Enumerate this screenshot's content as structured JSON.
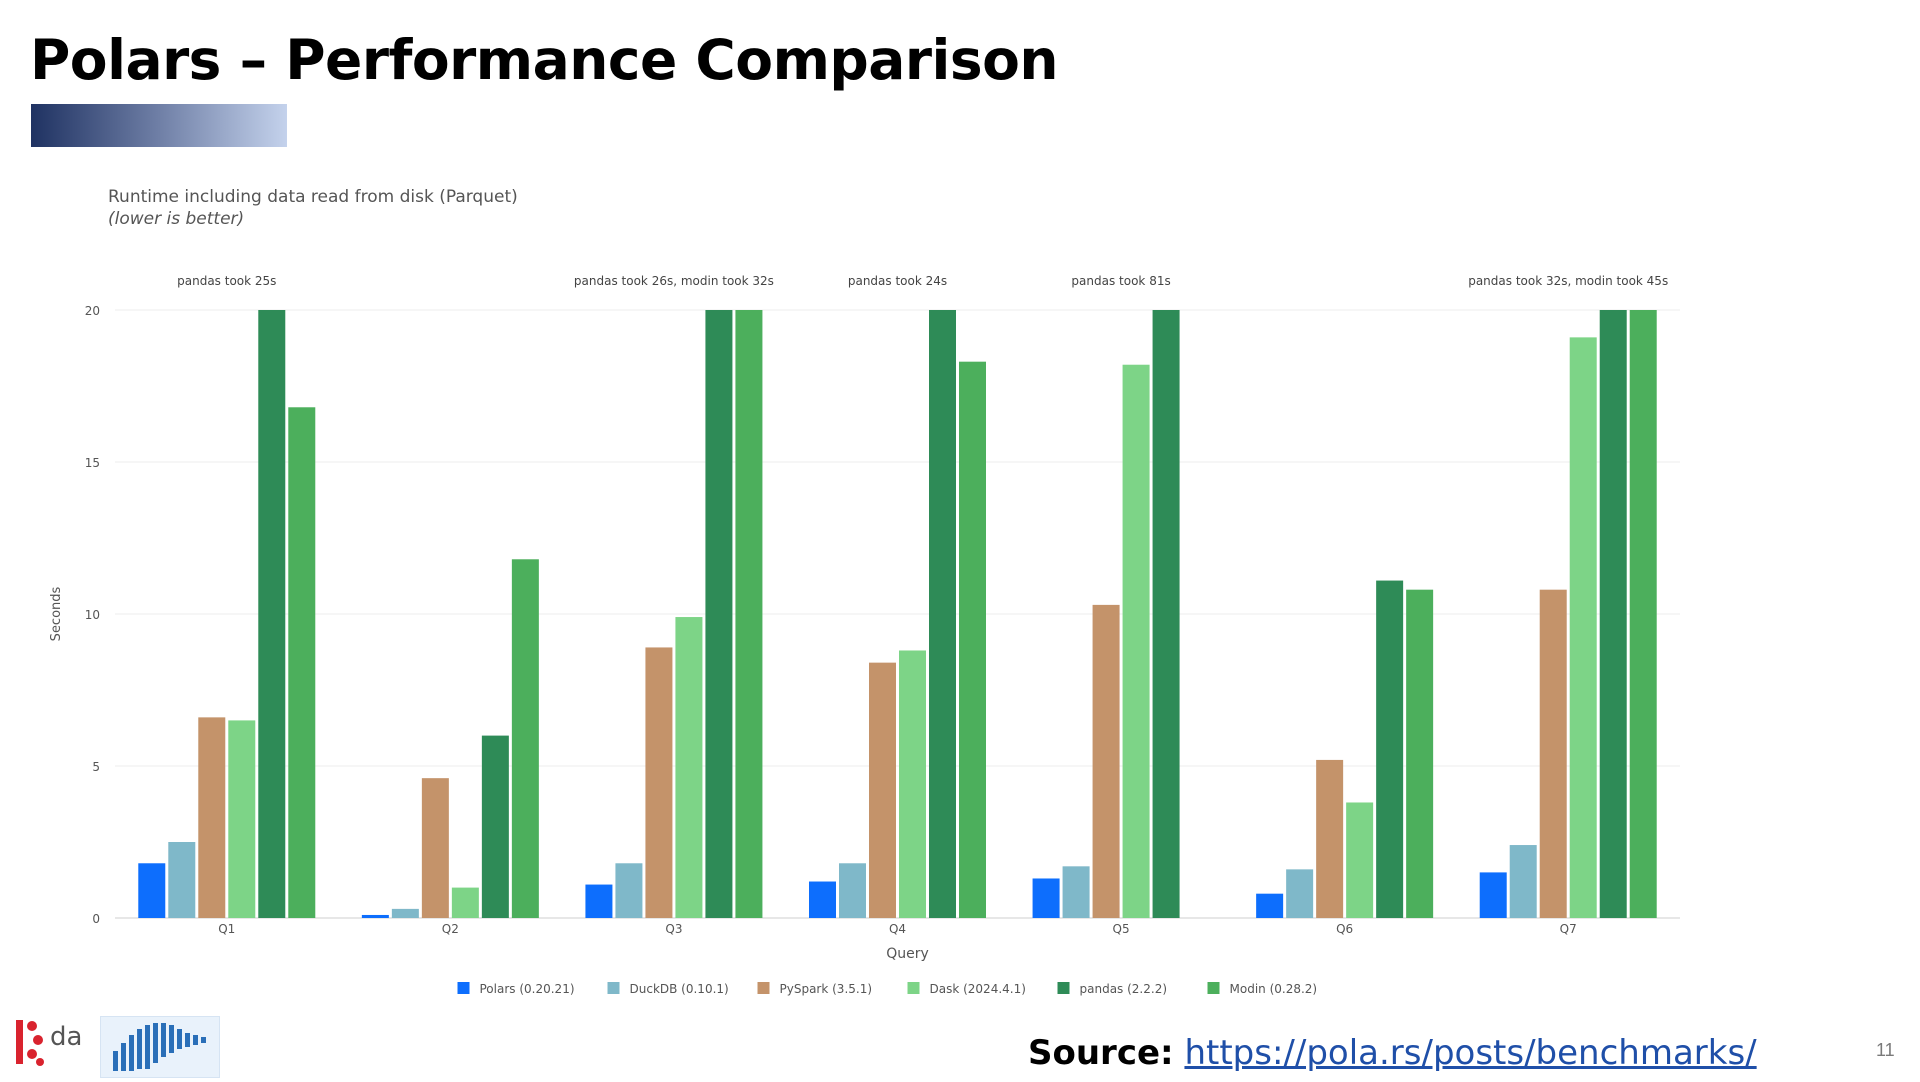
{
  "slide": {
    "title": "Polars – Performance Comparison",
    "source_label": "Source:",
    "source_url": "https://pola.rs/posts/benchmarks/",
    "page_number": "11",
    "logos": [
      "da-logo",
      "polars-bear-logo"
    ]
  },
  "chart_data": {
    "type": "bar",
    "title": "Runtime including data read from disk (Parquet)",
    "subtitle": "(lower is better)",
    "xlabel": "Query",
    "ylabel": "Seconds",
    "ylim": [
      0,
      20
    ],
    "yticks": [
      0,
      5,
      10,
      15,
      20
    ],
    "grid": true,
    "legend_position": "bottom-center",
    "categories": [
      "Q1",
      "Q2",
      "Q3",
      "Q4",
      "Q5",
      "Q6",
      "Q7"
    ],
    "series": [
      {
        "name": "Polars (0.20.21)",
        "color": "#0d6efd",
        "values": [
          1.8,
          0.1,
          1.1,
          1.2,
          1.3,
          0.8,
          1.5
        ]
      },
      {
        "name": "DuckDB (0.10.1)",
        "color": "#7fb8c9",
        "values": [
          2.5,
          0.3,
          1.8,
          1.8,
          1.7,
          1.6,
          2.4
        ]
      },
      {
        "name": "PySpark (3.5.1)",
        "color": "#c4936a",
        "values": [
          6.6,
          4.6,
          8.9,
          8.4,
          10.3,
          5.2,
          10.8
        ]
      },
      {
        "name": "Dask (2024.4.1)",
        "color": "#7dd487",
        "values": [
          6.5,
          1.0,
          9.9,
          8.8,
          18.2,
          3.8,
          19.1
        ]
      },
      {
        "name": "pandas (2.2.2)",
        "color": "#2e8b57",
        "values": [
          20,
          6.0,
          20,
          20,
          20,
          11.1,
          20
        ]
      },
      {
        "name": "Modin (0.28.2)",
        "color": "#4caf5c",
        "values": [
          16.8,
          11.8,
          20,
          18.3,
          null,
          10.8,
          20
        ]
      }
    ],
    "annotations": [
      {
        "category": "Q1",
        "text": "pandas took 25s"
      },
      {
        "category": "Q3",
        "text": "pandas took 26s, modin took 32s"
      },
      {
        "category": "Q4",
        "text": "pandas took 24s"
      },
      {
        "category": "Q5",
        "text": "pandas took 81s"
      },
      {
        "category": "Q7",
        "text": "pandas took 32s, modin took 45s"
      }
    ]
  }
}
